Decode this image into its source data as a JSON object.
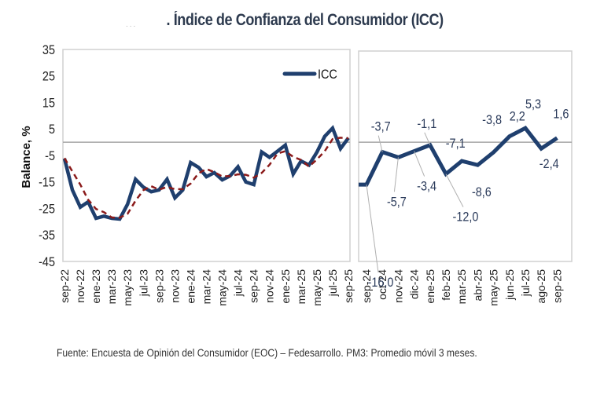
{
  "title_prefix_marks": "...",
  "title": ". Índice de Confianza del Consumidor (ICC)",
  "source": "Fuente: Encuesta de Opinión del Consumidor (EOC) – Fedesarrollo. PM3: Promedio móvil 3 meses.",
  "colors": {
    "icc": "#1f3f6e",
    "pm3": "#8b1a1a",
    "axis": "#a6a6a6",
    "frame": "#d0d0d0",
    "label": "#2a3a5a"
  },
  "chart_data": [
    {
      "type": "line",
      "ylabel": "Balance, %",
      "ylim": [
        -45,
        35
      ],
      "yticks": [
        35,
        25,
        15,
        5,
        -5,
        -15,
        -25,
        -35,
        -45
      ],
      "legend": {
        "entries": [
          "ICC"
        ],
        "placement": "top-right"
      },
      "x": [
        "sep-22",
        "oct-22",
        "nov-22",
        "dic-22",
        "ene-23",
        "feb-23",
        "mar-23",
        "abr-23",
        "may-23",
        "jun-23",
        "jul-23",
        "ago-23",
        "sep-23",
        "oct-23",
        "nov-23",
        "dic-23",
        "ene-24",
        "feb-24",
        "mar-24",
        "abr-24",
        "may-24",
        "jun-24",
        "jul-24",
        "ago-24",
        "sep-24",
        "oct-24",
        "nov-24",
        "dic-24",
        "ene-25",
        "feb-25",
        "mar-25",
        "abr-25",
        "may-25",
        "jun-25",
        "jul-25",
        "ago-25",
        "sep-25"
      ],
      "xtick_labels": [
        "sep-22",
        "nov-22",
        "ene-23",
        "mar-23",
        "may-23",
        "jul-23",
        "sep-23",
        "nov-23",
        "ene-24",
        "mar-24",
        "may-24",
        "jul-24",
        "sep-24",
        "nov-24",
        "ene-25",
        "mar-25",
        "may-25",
        "jul-25",
        "sep-25"
      ],
      "series": [
        {
          "name": "ICC",
          "style": "solid",
          "values": [
            -6.2,
            -18,
            -24.5,
            -22.5,
            -28.7,
            -27.9,
            -28.7,
            -29,
            -23.4,
            -14,
            -17,
            -18.7,
            -18,
            -14,
            -21,
            -18,
            -7.7,
            -9.5,
            -13,
            -11.5,
            -14.2,
            -12.7,
            -9.3,
            -15,
            -16,
            -3.7,
            -5.7,
            -3.4,
            -1.1,
            -12,
            -7.1,
            -8.6,
            -3.8,
            2.2,
            5.3,
            -2.4,
            1.6
          ]
        },
        {
          "name": "PM3",
          "style": "dashed",
          "values": [
            -6,
            -11,
            -16,
            -21.7,
            -25.2,
            -26.4,
            -28.4,
            -28.5,
            -27,
            -22.1,
            -18.1,
            -16.6,
            -17.9,
            -16.9,
            -17.7,
            -17.7,
            -15.6,
            -11.7,
            -10.1,
            -11.3,
            -12.9,
            -12.8,
            -12.1,
            -12.3,
            -13.4,
            -11.6,
            -8.5,
            -4.3,
            -3.4,
            -5.5,
            -6.7,
            -9.2,
            -6.5,
            -3.4,
            1.2,
            1.7,
            1.5
          ]
        }
      ]
    },
    {
      "type": "line",
      "ylim": [
        -45,
        35
      ],
      "x": [
        "sep-24",
        "oct-24",
        "nov-24",
        "dic-24",
        "ene-25",
        "feb-25",
        "mar-25",
        "abr-25",
        "may-25",
        "jun-25",
        "jul-25",
        "ago-25",
        "sep-25"
      ],
      "series": [
        {
          "name": "ICC",
          "style": "solid",
          "values": [
            -16.0,
            -3.7,
            -5.7,
            -3.4,
            -1.1,
            -12.0,
            -7.1,
            -8.6,
            -3.8,
            2.2,
            5.3,
            -2.4,
            1.6
          ],
          "data_labels": [
            "-16,0",
            "-3,7",
            "-5,7",
            "-3,4",
            "-1,1",
            "-12,0",
            "-7,1",
            "-8,6",
            "-3,8",
            "2,2",
            "5,3",
            "-2,4",
            "1,6"
          ]
        }
      ]
    }
  ]
}
